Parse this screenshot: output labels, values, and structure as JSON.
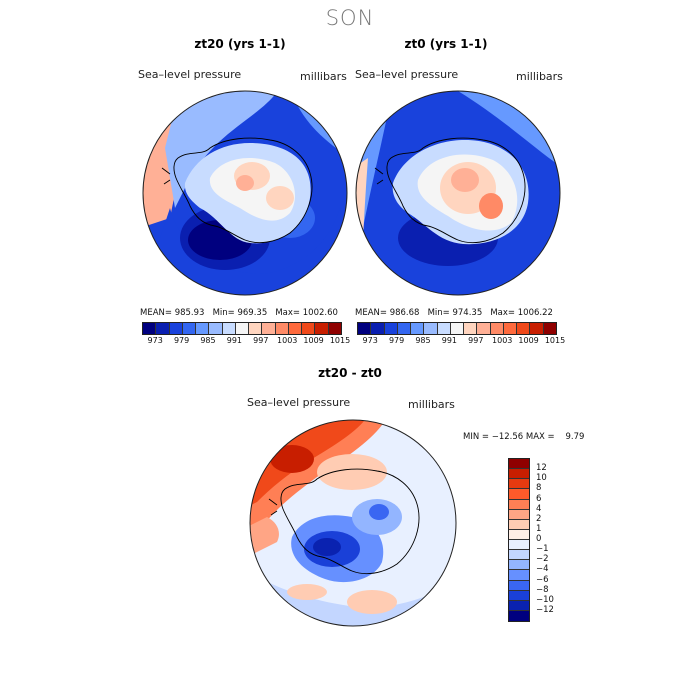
{
  "season": "SON",
  "maps": [
    {
      "title": "zt20 (yrs 1-1)",
      "label_left": "Sea–level pressure",
      "label_right": "millibars",
      "mean_label": "MEAN=",
      "mean": "985.93",
      "min_label": "Min=",
      "min": "969.35",
      "max_label": "Max=",
      "max": "1002.60"
    },
    {
      "title": "zt0 (yrs 1-1)",
      "label_left": "Sea–level pressure",
      "label_right": "millibars",
      "mean_label": "MEAN=",
      "mean": "986.68",
      "min_label": "Min=",
      "min": "974.35",
      "max_label": "Max=",
      "max": "1006.22"
    }
  ],
  "cbar_ticks": [
    "973",
    "979",
    "985",
    "991",
    "997",
    "1003",
    "1009",
    "1015"
  ],
  "abs_colors": [
    "#00007f",
    "#0a1fb0",
    "#1942dc",
    "#3366f0",
    "#6699ff",
    "#99bbff",
    "#c8dcff",
    "#f5f5f5",
    "#ffd5bf",
    "#ffb096",
    "#ff8a66",
    "#ff6a3d",
    "#f0491a",
    "#c81e00",
    "#8f0000"
  ],
  "diff": {
    "title": "zt20 - zt0",
    "label_left": "Sea–level pressure",
    "label_right": "millibars",
    "minmax_text": "MIN = −12.56 MAX =    9.79",
    "ticks": [
      "12",
      "10",
      "8",
      "6",
      "4",
      "2",
      "1",
      "0",
      "−1",
      "−2",
      "−4",
      "−6",
      "−8",
      "−10",
      "−12"
    ],
    "colors": [
      "#8f0000",
      "#c81e00",
      "#e63a10",
      "#ff5a2a",
      "#ff7f55",
      "#ffa585",
      "#ffccb3",
      "#ffeee5",
      "#e8f0ff",
      "#c3d6ff",
      "#93b5ff",
      "#6690ff",
      "#3a66f2",
      "#1a40d8",
      "#0a22b0",
      "#00007f"
    ]
  }
}
